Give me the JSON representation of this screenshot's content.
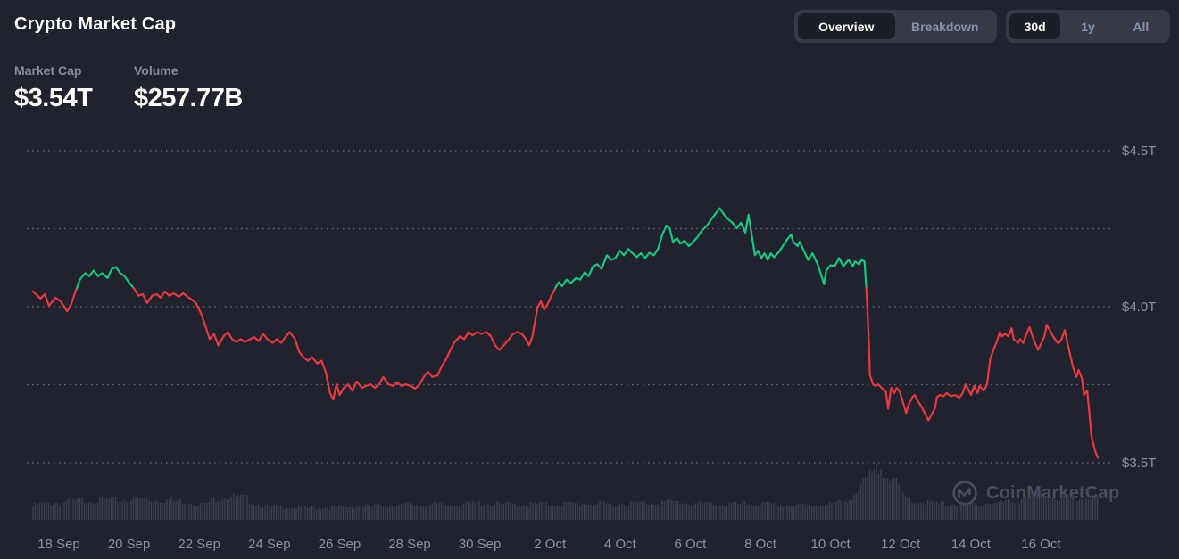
{
  "header": {
    "title": "Crypto Market Cap",
    "stats": {
      "market_cap": {
        "label": "Market Cap",
        "value": "$3.54T"
      },
      "volume": {
        "label": "Volume",
        "value": "$257.77B"
      }
    }
  },
  "controls": {
    "view_toggle": {
      "options": [
        "Overview",
        "Breakdown"
      ],
      "active": "Overview"
    },
    "range_toggle": {
      "options": [
        "30d",
        "1y",
        "All"
      ],
      "active": "30d"
    }
  },
  "watermark": {
    "text": "CoinMarketCap",
    "logo": "coinmarketcap-logo"
  },
  "colors": {
    "background": "#20222D",
    "up": "#16C784",
    "down": "#EA3943",
    "grid_dots": "#A9AFBF",
    "axis_text": "#8D93A6",
    "volume_bar": "#3D4152",
    "control_bg": "#363A48",
    "control_active_bg": "#1B1D27",
    "watermark": "#4A4E5F"
  },
  "chart_data": {
    "type": "line",
    "title": "Crypto Market Cap - 30d",
    "y_unit": "trillion USD",
    "ylim": [
      3.4,
      4.6
    ],
    "baseline": 4.06,
    "grid": "dotted-horizontal",
    "legend": "none",
    "y_gridlines": [
      {
        "value": 4.5,
        "label": "$4.5T"
      },
      {
        "value": 4.25,
        "label": ""
      },
      {
        "value": 4.0,
        "label": "$4.0T"
      },
      {
        "value": 3.75,
        "label": ""
      },
      {
        "value": 3.5,
        "label": "$3.5T"
      }
    ],
    "x_ticks": [
      "18 Sep",
      "20 Sep",
      "22 Sep",
      "24 Sep",
      "26 Sep",
      "28 Sep",
      "30 Sep",
      "2 Oct",
      "4 Oct",
      "6 Oct",
      "8 Oct",
      "10 Oct",
      "12 Oct",
      "14 Oct",
      "16 Oct"
    ],
    "points": [
      [
        0.0,
        4.049
      ],
      [
        0.007,
        4.026
      ],
      [
        0.011,
        4.04
      ],
      [
        0.015,
        4.003
      ],
      [
        0.021,
        4.029
      ],
      [
        0.026,
        4.017
      ],
      [
        0.032,
        3.985
      ],
      [
        0.036,
        4.009
      ],
      [
        0.04,
        4.049
      ],
      [
        0.044,
        4.087
      ],
      [
        0.049,
        4.107
      ],
      [
        0.053,
        4.098
      ],
      [
        0.057,
        4.116
      ],
      [
        0.061,
        4.098
      ],
      [
        0.065,
        4.107
      ],
      [
        0.07,
        4.092
      ],
      [
        0.074,
        4.121
      ],
      [
        0.078,
        4.127
      ],
      [
        0.082,
        4.107
      ],
      [
        0.086,
        4.098
      ],
      [
        0.09,
        4.078
      ],
      [
        0.095,
        4.058
      ],
      [
        0.099,
        4.035
      ],
      [
        0.103,
        4.04
      ],
      [
        0.107,
        4.012
      ],
      [
        0.112,
        4.035
      ],
      [
        0.116,
        4.04
      ],
      [
        0.12,
        4.029
      ],
      [
        0.124,
        4.049
      ],
      [
        0.128,
        4.035
      ],
      [
        0.132,
        4.043
      ],
      [
        0.137,
        4.032
      ],
      [
        0.141,
        4.043
      ],
      [
        0.145,
        4.032
      ],
      [
        0.149,
        4.023
      ],
      [
        0.153,
        4.012
      ],
      [
        0.158,
        3.977
      ],
      [
        0.162,
        3.937
      ],
      [
        0.166,
        3.896
      ],
      [
        0.17,
        3.913
      ],
      [
        0.174,
        3.876
      ],
      [
        0.179,
        3.905
      ],
      [
        0.183,
        3.919
      ],
      [
        0.187,
        3.896
      ],
      [
        0.191,
        3.887
      ],
      [
        0.195,
        3.896
      ],
      [
        0.199,
        3.887
      ],
      [
        0.204,
        3.896
      ],
      [
        0.208,
        3.902
      ],
      [
        0.212,
        3.89
      ],
      [
        0.216,
        3.913
      ],
      [
        0.22,
        3.896
      ],
      [
        0.225,
        3.884
      ],
      [
        0.229,
        3.896
      ],
      [
        0.233,
        3.884
      ],
      [
        0.237,
        3.902
      ],
      [
        0.241,
        3.919
      ],
      [
        0.246,
        3.896
      ],
      [
        0.25,
        3.855
      ],
      [
        0.254,
        3.838
      ],
      [
        0.258,
        3.827
      ],
      [
        0.262,
        3.838
      ],
      [
        0.267,
        3.818
      ],
      [
        0.271,
        3.827
      ],
      [
        0.275,
        3.789
      ],
      [
        0.279,
        3.723
      ],
      [
        0.282,
        3.702
      ],
      [
        0.285,
        3.751
      ],
      [
        0.288,
        3.717
      ],
      [
        0.292,
        3.74
      ],
      [
        0.296,
        3.751
      ],
      [
        0.3,
        3.731
      ],
      [
        0.304,
        3.76
      ],
      [
        0.309,
        3.74
      ],
      [
        0.313,
        3.746
      ],
      [
        0.317,
        3.751
      ],
      [
        0.321,
        3.74
      ],
      [
        0.325,
        3.751
      ],
      [
        0.329,
        3.775
      ],
      [
        0.334,
        3.751
      ],
      [
        0.338,
        3.746
      ],
      [
        0.342,
        3.757
      ],
      [
        0.346,
        3.746
      ],
      [
        0.35,
        3.751
      ],
      [
        0.355,
        3.746
      ],
      [
        0.359,
        3.737
      ],
      [
        0.363,
        3.751
      ],
      [
        0.367,
        3.775
      ],
      [
        0.371,
        3.792
      ],
      [
        0.375,
        3.775
      ],
      [
        0.38,
        3.78
      ],
      [
        0.384,
        3.809
      ],
      [
        0.388,
        3.832
      ],
      [
        0.392,
        3.861
      ],
      [
        0.396,
        3.887
      ],
      [
        0.401,
        3.905
      ],
      [
        0.405,
        3.896
      ],
      [
        0.409,
        3.919
      ],
      [
        0.413,
        3.908
      ],
      [
        0.417,
        3.919
      ],
      [
        0.421,
        3.913
      ],
      [
        0.426,
        3.919
      ],
      [
        0.43,
        3.905
      ],
      [
        0.434,
        3.876
      ],
      [
        0.438,
        3.861
      ],
      [
        0.442,
        3.876
      ],
      [
        0.447,
        3.896
      ],
      [
        0.451,
        3.913
      ],
      [
        0.455,
        3.919
      ],
      [
        0.459,
        3.913
      ],
      [
        0.463,
        3.896
      ],
      [
        0.466,
        3.876
      ],
      [
        0.469,
        3.905
      ],
      [
        0.472,
        3.962
      ],
      [
        0.474,
        4.0
      ],
      [
        0.477,
        4.017
      ],
      [
        0.48,
        3.991
      ],
      [
        0.483,
        4.006
      ],
      [
        0.486,
        4.029
      ],
      [
        0.489,
        4.049
      ],
      [
        0.492,
        4.069
      ],
      [
        0.494,
        4.078
      ],
      [
        0.497,
        4.066
      ],
      [
        0.501,
        4.087
      ],
      [
        0.505,
        4.075
      ],
      [
        0.51,
        4.092
      ],
      [
        0.514,
        4.087
      ],
      [
        0.518,
        4.11
      ],
      [
        0.522,
        4.098
      ],
      [
        0.526,
        4.13
      ],
      [
        0.53,
        4.136
      ],
      [
        0.534,
        4.121
      ],
      [
        0.539,
        4.165
      ],
      [
        0.543,
        4.15
      ],
      [
        0.547,
        4.156
      ],
      [
        0.551,
        4.179
      ],
      [
        0.555,
        4.165
      ],
      [
        0.559,
        4.185
      ],
      [
        0.563,
        4.171
      ],
      [
        0.567,
        4.159
      ],
      [
        0.571,
        4.171
      ],
      [
        0.575,
        4.156
      ],
      [
        0.579,
        4.173
      ],
      [
        0.583,
        4.165
      ],
      [
        0.587,
        4.185
      ],
      [
        0.591,
        4.231
      ],
      [
        0.595,
        4.26
      ],
      [
        0.598,
        4.251
      ],
      [
        0.601,
        4.208
      ],
      [
        0.605,
        4.22
      ],
      [
        0.608,
        4.202
      ],
      [
        0.612,
        4.211
      ],
      [
        0.616,
        4.194
      ],
      [
        0.62,
        4.208
      ],
      [
        0.624,
        4.223
      ],
      [
        0.628,
        4.243
      ],
      [
        0.633,
        4.26
      ],
      [
        0.637,
        4.28
      ],
      [
        0.641,
        4.298
      ],
      [
        0.645,
        4.315
      ],
      [
        0.649,
        4.295
      ],
      [
        0.653,
        4.28
      ],
      [
        0.657,
        4.269
      ],
      [
        0.661,
        4.251
      ],
      [
        0.665,
        4.269
      ],
      [
        0.669,
        4.237
      ],
      [
        0.672,
        4.295
      ],
      [
        0.676,
        4.208
      ],
      [
        0.678,
        4.165
      ],
      [
        0.681,
        4.179
      ],
      [
        0.684,
        4.156
      ],
      [
        0.687,
        4.171
      ],
      [
        0.69,
        4.15
      ],
      [
        0.693,
        4.171
      ],
      [
        0.696,
        4.159
      ],
      [
        0.7,
        4.173
      ],
      [
        0.704,
        4.194
      ],
      [
        0.708,
        4.214
      ],
      [
        0.712,
        4.231
      ],
      [
        0.714,
        4.208
      ],
      [
        0.718,
        4.194
      ],
      [
        0.72,
        4.208
      ],
      [
        0.724,
        4.179
      ],
      [
        0.728,
        4.15
      ],
      [
        0.732,
        4.171
      ],
      [
        0.737,
        4.136
      ],
      [
        0.743,
        4.072
      ],
      [
        0.745,
        4.116
      ],
      [
        0.749,
        4.133
      ],
      [
        0.753,
        4.13
      ],
      [
        0.757,
        4.156
      ],
      [
        0.761,
        4.13
      ],
      [
        0.766,
        4.15
      ],
      [
        0.77,
        4.13
      ],
      [
        0.772,
        4.145
      ],
      [
        0.776,
        4.136
      ],
      [
        0.778,
        4.15
      ],
      [
        0.781,
        4.145
      ],
      [
        0.783,
        4.035
      ],
      [
        0.785,
        3.89
      ],
      [
        0.786,
        3.78
      ],
      [
        0.789,
        3.751
      ],
      [
        0.791,
        3.746
      ],
      [
        0.794,
        3.751
      ],
      [
        0.797,
        3.74
      ],
      [
        0.801,
        3.728
      ],
      [
        0.803,
        3.673
      ],
      [
        0.806,
        3.74
      ],
      [
        0.809,
        3.723
      ],
      [
        0.811,
        3.74
      ],
      [
        0.814,
        3.728
      ],
      [
        0.817,
        3.694
      ],
      [
        0.82,
        3.659
      ],
      [
        0.822,
        3.682
      ],
      [
        0.826,
        3.711
      ],
      [
        0.828,
        3.717
      ],
      [
        0.831,
        3.697
      ],
      [
        0.834,
        3.682
      ],
      [
        0.837,
        3.662
      ],
      [
        0.841,
        3.636
      ],
      [
        0.847,
        3.673
      ],
      [
        0.849,
        3.711
      ],
      [
        0.852,
        3.717
      ],
      [
        0.855,
        3.713
      ],
      [
        0.858,
        3.723
      ],
      [
        0.862,
        3.713
      ],
      [
        0.866,
        3.717
      ],
      [
        0.87,
        3.708
      ],
      [
        0.873,
        3.723
      ],
      [
        0.876,
        3.751
      ],
      [
        0.879,
        3.731
      ],
      [
        0.881,
        3.717
      ],
      [
        0.884,
        3.746
      ],
      [
        0.887,
        3.723
      ],
      [
        0.889,
        3.746
      ],
      [
        0.893,
        3.731
      ],
      [
        0.896,
        3.751
      ],
      [
        0.899,
        3.832
      ],
      [
        0.902,
        3.861
      ],
      [
        0.905,
        3.887
      ],
      [
        0.908,
        3.919
      ],
      [
        0.91,
        3.905
      ],
      [
        0.913,
        3.913
      ],
      [
        0.916,
        3.905
      ],
      [
        0.919,
        3.931
      ],
      [
        0.921,
        3.896
      ],
      [
        0.925,
        3.884
      ],
      [
        0.927,
        3.896
      ],
      [
        0.93,
        3.884
      ],
      [
        0.933,
        3.913
      ],
      [
        0.936,
        3.934
      ],
      [
        0.938,
        3.913
      ],
      [
        0.941,
        3.884
      ],
      [
        0.944,
        3.861
      ],
      [
        0.946,
        3.876
      ],
      [
        0.95,
        3.905
      ],
      [
        0.952,
        3.942
      ],
      [
        0.955,
        3.925
      ],
      [
        0.958,
        3.905
      ],
      [
        0.961,
        3.89
      ],
      [
        0.963,
        3.882
      ],
      [
        0.966,
        3.896
      ],
      [
        0.969,
        3.925
      ],
      [
        0.972,
        3.876
      ],
      [
        0.975,
        3.832
      ],
      [
        0.977,
        3.803
      ],
      [
        0.98,
        3.775
      ],
      [
        0.982,
        3.797
      ],
      [
        0.985,
        3.772
      ],
      [
        0.987,
        3.717
      ],
      [
        0.99,
        3.731
      ],
      [
        0.992,
        3.662
      ],
      [
        0.994,
        3.587
      ],
      [
        0.997,
        3.543
      ],
      [
        1.0,
        3.516
      ]
    ],
    "volume_relative": [
      [
        0.0,
        0.28
      ],
      [
        0.02,
        0.33
      ],
      [
        0.04,
        0.36
      ],
      [
        0.06,
        0.38
      ],
      [
        0.08,
        0.38
      ],
      [
        0.1,
        0.4
      ],
      [
        0.12,
        0.38
      ],
      [
        0.14,
        0.36
      ],
      [
        0.15,
        0.33
      ],
      [
        0.16,
        0.28
      ],
      [
        0.17,
        0.4
      ],
      [
        0.18,
        0.45
      ],
      [
        0.2,
        0.42
      ],
      [
        0.21,
        0.3
      ],
      [
        0.22,
        0.26
      ],
      [
        0.24,
        0.24
      ],
      [
        0.26,
        0.23
      ],
      [
        0.28,
        0.24
      ],
      [
        0.3,
        0.25
      ],
      [
        0.32,
        0.27
      ],
      [
        0.34,
        0.28
      ],
      [
        0.36,
        0.3
      ],
      [
        0.38,
        0.29
      ],
      [
        0.4,
        0.3
      ],
      [
        0.42,
        0.32
      ],
      [
        0.44,
        0.3
      ],
      [
        0.46,
        0.31
      ],
      [
        0.48,
        0.3
      ],
      [
        0.5,
        0.31
      ],
      [
        0.52,
        0.32
      ],
      [
        0.54,
        0.3
      ],
      [
        0.56,
        0.32
      ],
      [
        0.58,
        0.33
      ],
      [
        0.6,
        0.35
      ],
      [
        0.62,
        0.32
      ],
      [
        0.64,
        0.3
      ],
      [
        0.66,
        0.3
      ],
      [
        0.68,
        0.31
      ],
      [
        0.7,
        0.28
      ],
      [
        0.72,
        0.28
      ],
      [
        0.74,
        0.29
      ],
      [
        0.75,
        0.31
      ],
      [
        0.76,
        0.34
      ],
      [
        0.77,
        0.46
      ],
      [
        0.78,
        0.7
      ],
      [
        0.79,
        0.9
      ],
      [
        0.795,
        1.0
      ],
      [
        0.8,
        0.97
      ],
      [
        0.805,
        0.88
      ],
      [
        0.81,
        0.72
      ],
      [
        0.815,
        0.55
      ],
      [
        0.82,
        0.42
      ],
      [
        0.83,
        0.35
      ],
      [
        0.84,
        0.33
      ],
      [
        0.85,
        0.31
      ],
      [
        0.86,
        0.3
      ],
      [
        0.87,
        0.31
      ],
      [
        0.88,
        0.3
      ],
      [
        0.89,
        0.31
      ],
      [
        0.9,
        0.32
      ],
      [
        0.91,
        0.33
      ],
      [
        0.92,
        0.37
      ],
      [
        0.93,
        0.42
      ],
      [
        0.94,
        0.47
      ],
      [
        0.95,
        0.49
      ],
      [
        0.96,
        0.45
      ],
      [
        0.97,
        0.42
      ],
      [
        0.98,
        0.41
      ],
      [
        0.99,
        0.42
      ],
      [
        1.0,
        0.4
      ]
    ]
  }
}
